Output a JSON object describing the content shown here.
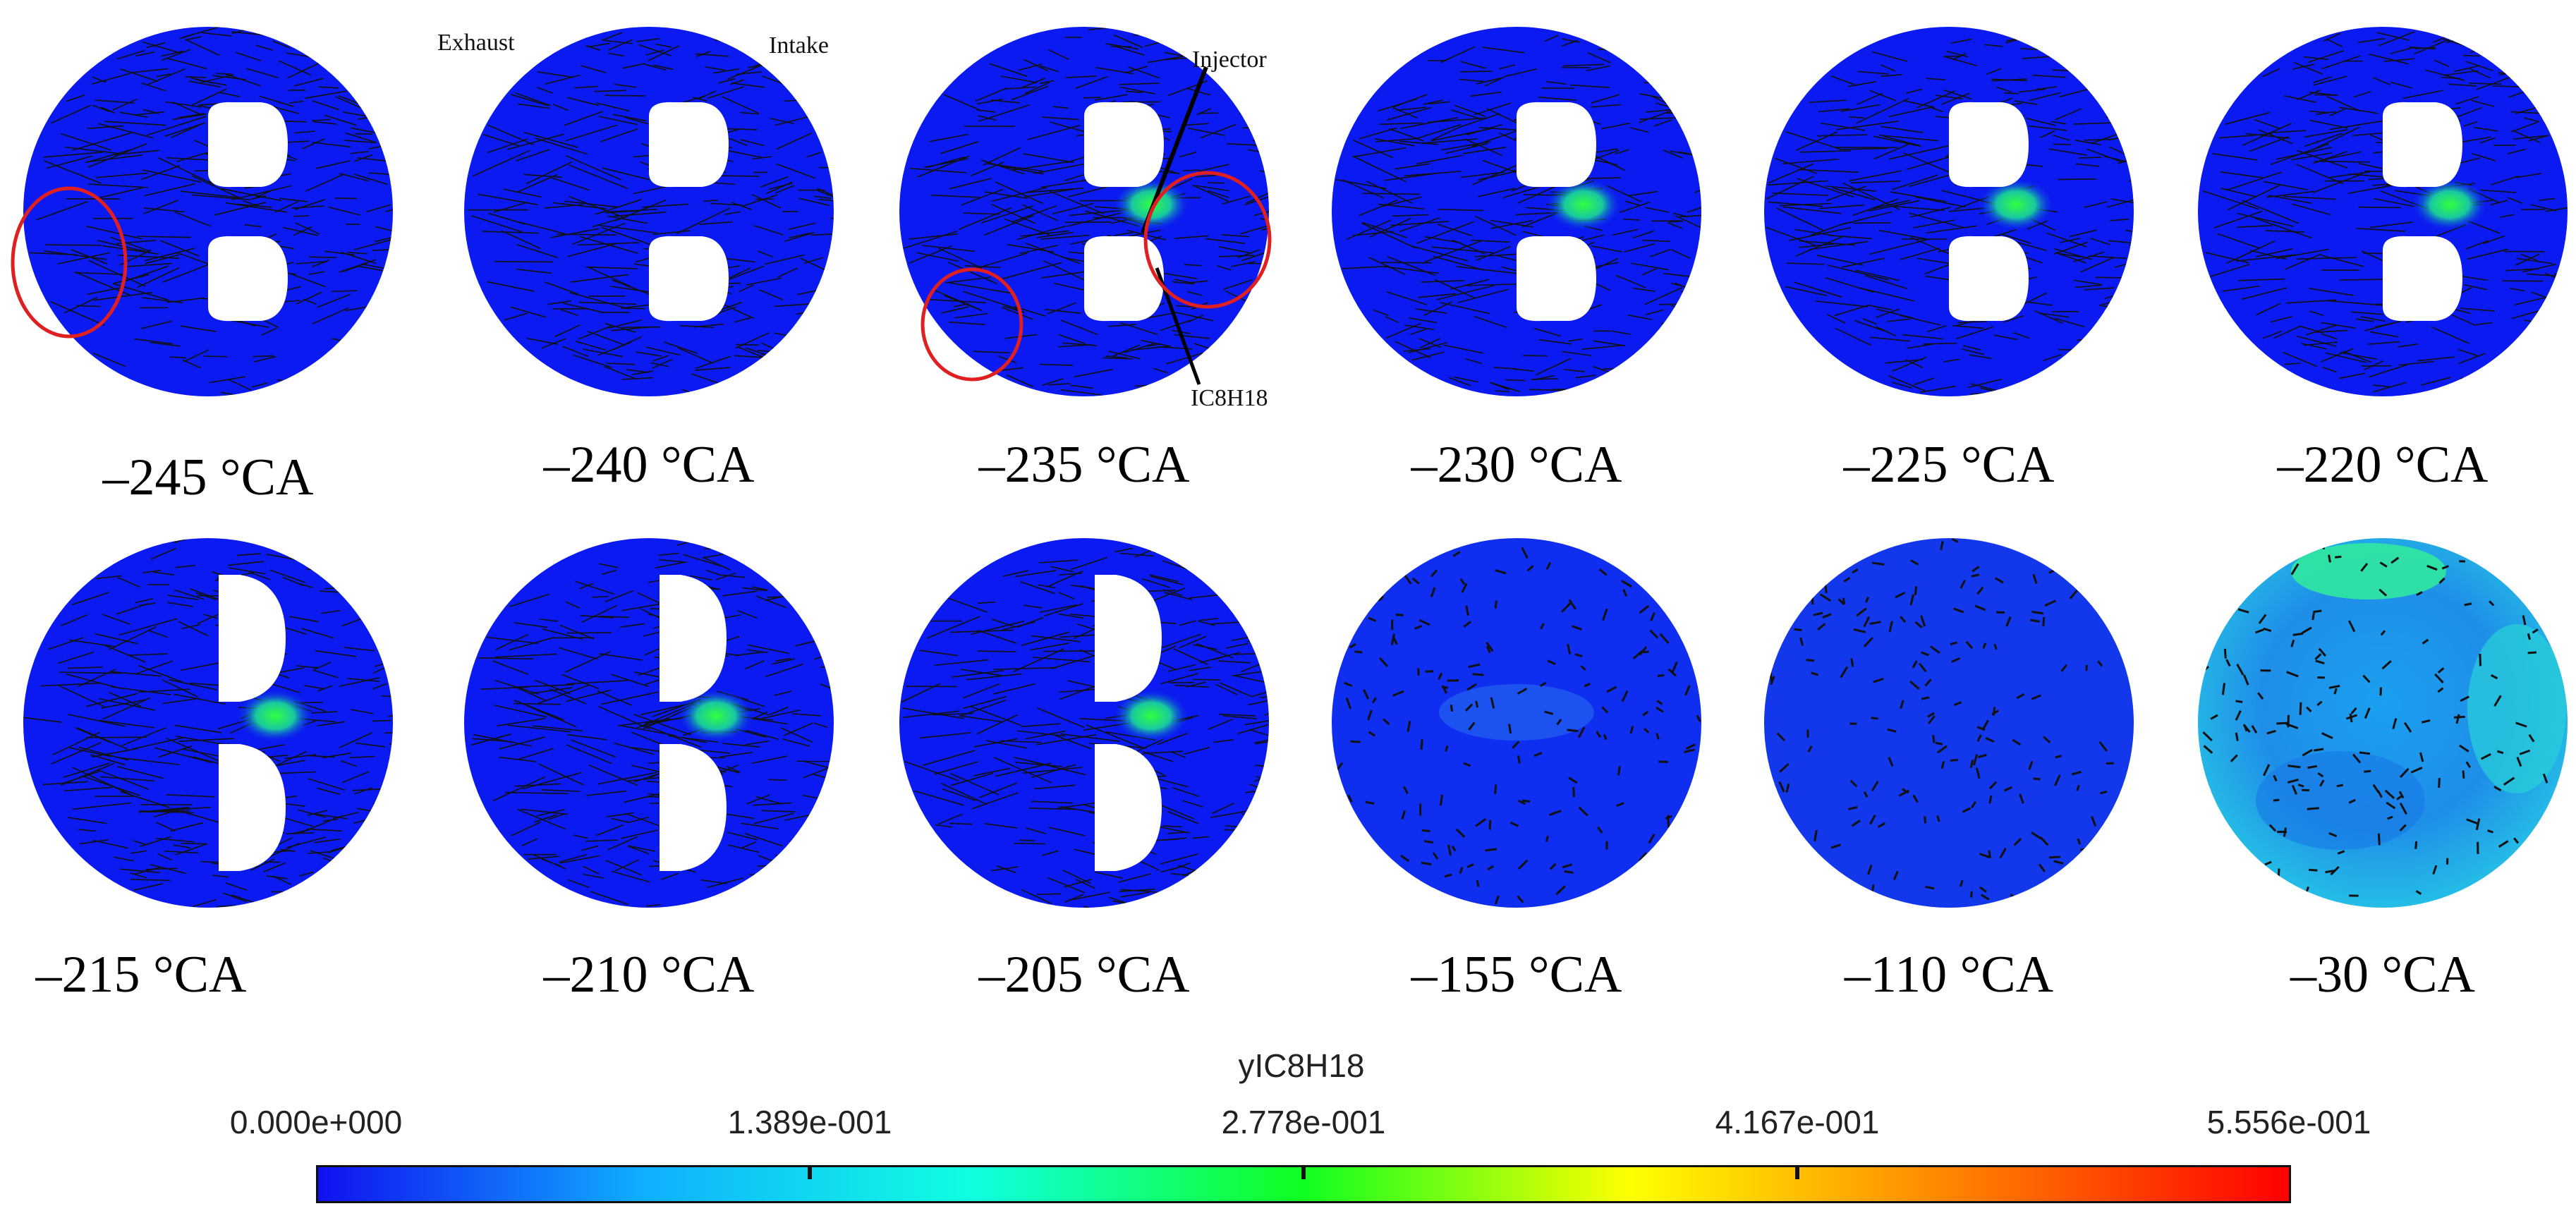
{
  "annotations": {
    "exhaust": "Exhaust",
    "intake": "Intake",
    "injector": "Injector",
    "species": "IC8H18"
  },
  "panels": [
    {
      "label": "–245 °CA",
      "state": "early",
      "spray": 0,
      "fill": "#0a1af0"
    },
    {
      "label": "–240 °CA",
      "state": "early",
      "spray": 0,
      "fill": "#0a1af0"
    },
    {
      "label": "–235 °CA",
      "state": "spray",
      "spray": 1,
      "fill": "#0a1af0"
    },
    {
      "label": "–230 °CA",
      "state": "spray",
      "spray": 1,
      "fill": "#0a1af0"
    },
    {
      "label": "–225 °CA",
      "state": "spray",
      "spray": 1,
      "fill": "#0a1af0"
    },
    {
      "label": "–220 °CA",
      "state": "spray",
      "spray": 1,
      "fill": "#0a1af0"
    },
    {
      "label": "–215 °CA",
      "state": "half",
      "spray": 1,
      "fill": "#0a1af0"
    },
    {
      "label": "–210 °CA",
      "state": "half",
      "spray": 1,
      "fill": "#0a1af0"
    },
    {
      "label": "–205 °CA",
      "state": "half",
      "spray": 1,
      "fill": "#0a1af0"
    },
    {
      "label": "–155 °CA",
      "state": "closed",
      "spray": 0,
      "fill": "#0f2ef0"
    },
    {
      "label": "–110 °CA",
      "state": "closed",
      "spray": 0,
      "fill": "#1338ec"
    },
    {
      "label": "–30 °CA",
      "state": "mixed",
      "spray": 0,
      "fill": "#1f8ee8"
    }
  ],
  "legend": {
    "title": "yIC8H18",
    "ticks": [
      "0.000e+000",
      "1.389e-001",
      "2.778e-001",
      "4.167e-001",
      "5.556e-001"
    ],
    "min": 0.0,
    "max": 0.5556,
    "colors": [
      "#1010f0",
      "#10b0ff",
      "#10ffe0",
      "#10ff20",
      "#ffff00",
      "#ff8000",
      "#ff0000"
    ]
  }
}
